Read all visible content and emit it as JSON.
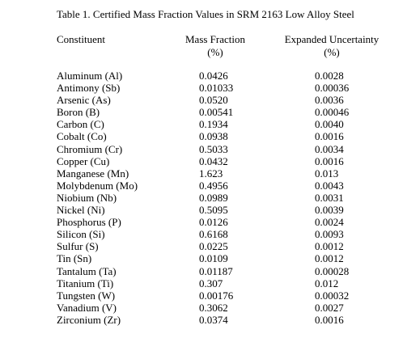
{
  "caption": "Table 1. Certified Mass Fraction Values in SRM 2163 Low Alloy Steel",
  "headers": {
    "constituent": "Constituent",
    "mass_fraction": "Mass Fraction",
    "mass_fraction_unit": "(%)",
    "uncertainty": "Expanded Uncertainty",
    "uncertainty_unit": "(%)"
  },
  "rows": [
    {
      "name": "Aluminum (Al)",
      "mass": "0.0426",
      "unc": "0.0028"
    },
    {
      "name": "Antimony (Sb)",
      "mass": "0.01033",
      "unc": "0.00036"
    },
    {
      "name": "Arsenic (As)",
      "mass": "0.0520",
      "unc": "0.0036"
    },
    {
      "name": "Boron (B)",
      "mass": "0.00541",
      "unc": "0.00046"
    },
    {
      "name": "Carbon (C)",
      "mass": "0.1934",
      "unc": "0.0040"
    },
    {
      "name": "Cobalt (Co)",
      "mass": "0.0938",
      "unc": "0.0016"
    },
    {
      "name": "Chromium (Cr)",
      "mass": "0.5033",
      "unc": "0.0034"
    },
    {
      "name": "Copper (Cu)",
      "mass": "0.0432",
      "unc": "0.0016"
    },
    {
      "name": "Manganese (Mn)",
      "mass": "1.623",
      "unc": "0.013"
    },
    {
      "name": "Molybdenum (Mo)",
      "mass": "0.4956",
      "unc": "0.0043"
    },
    {
      "name": "Niobium (Nb)",
      "mass": "0.0989",
      "unc": "0.0031"
    },
    {
      "name": "Nickel (Ni)",
      "mass": "0.5095",
      "unc": "0.0039"
    },
    {
      "name": "Phosphorus (P)",
      "mass": "0.0126",
      "unc": "0.0024"
    },
    {
      "name": "Silicon (Si)",
      "mass": "0.6168",
      "unc": "0.0093"
    },
    {
      "name": "Sulfur (S)",
      "mass": "0.0225",
      "unc": "0.0012"
    },
    {
      "name": "Tin (Sn)",
      "mass": "0.0109",
      "unc": "0.0012"
    },
    {
      "name": "Tantalum (Ta)",
      "mass": "0.01187",
      "unc": "0.00028"
    },
    {
      "name": "Titanium (Ti)",
      "mass": "0.307",
      "unc": "0.012"
    },
    {
      "name": "Tungsten (W)",
      "mass": "0.00176",
      "unc": "0.00032"
    },
    {
      "name": "Vanadium (V)",
      "mass": "0.3062",
      "unc": "0.0027"
    },
    {
      "name": "Zirconium (Zr)",
      "mass": "0.0374",
      "unc": "0.0016"
    }
  ]
}
